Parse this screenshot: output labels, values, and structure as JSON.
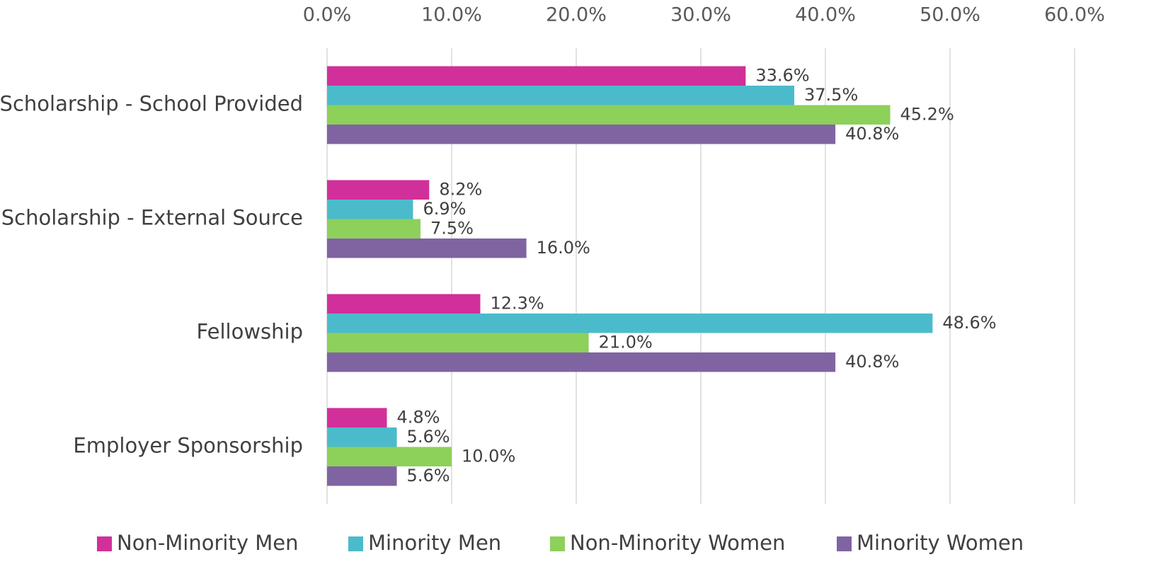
{
  "chart_data": {
    "type": "bar",
    "orientation": "horizontal",
    "categories": [
      "Scholarship - School Provided",
      "Scholarship - External Source",
      "Fellowship",
      "Employer Sponsorship"
    ],
    "series": [
      {
        "name": "Non-Minority Men",
        "color": "#d1309a",
        "values": [
          33.6,
          8.2,
          12.3,
          4.8
        ],
        "value_labels": [
          "33.6%",
          "8.2%",
          "12.3%",
          "4.8%"
        ]
      },
      {
        "name": "Minority Men",
        "color": "#4bbbcc",
        "values": [
          37.5,
          6.9,
          48.6,
          5.6
        ],
        "value_labels": [
          "37.5%",
          "6.9%",
          "48.6%",
          "5.6%"
        ]
      },
      {
        "name": "Non-Minority Women",
        "color": "#8dd05a",
        "values": [
          45.2,
          7.5,
          21.0,
          10.0
        ],
        "value_labels": [
          "45.2%",
          "7.5%",
          "21.0%",
          "10.0%"
        ]
      },
      {
        "name": "Minority Women",
        "color": "#8064a2",
        "values": [
          40.8,
          16.0,
          40.8,
          5.6
        ],
        "value_labels": [
          "40.8%",
          "16.0%",
          "40.8%",
          "5.6%"
        ]
      }
    ],
    "xlim": [
      0,
      60
    ],
    "xticks": [
      {
        "value": 0,
        "label": "0.0%"
      },
      {
        "value": 10,
        "label": "10.0%"
      },
      {
        "value": 20,
        "label": "20.0%"
      },
      {
        "value": 30,
        "label": "30.0%"
      },
      {
        "value": 40,
        "label": "40.0%"
      },
      {
        "value": 50,
        "label": "50.0%"
      },
      {
        "value": 60,
        "label": "60.0%"
      }
    ],
    "grid": true,
    "legend": "bottom"
  }
}
